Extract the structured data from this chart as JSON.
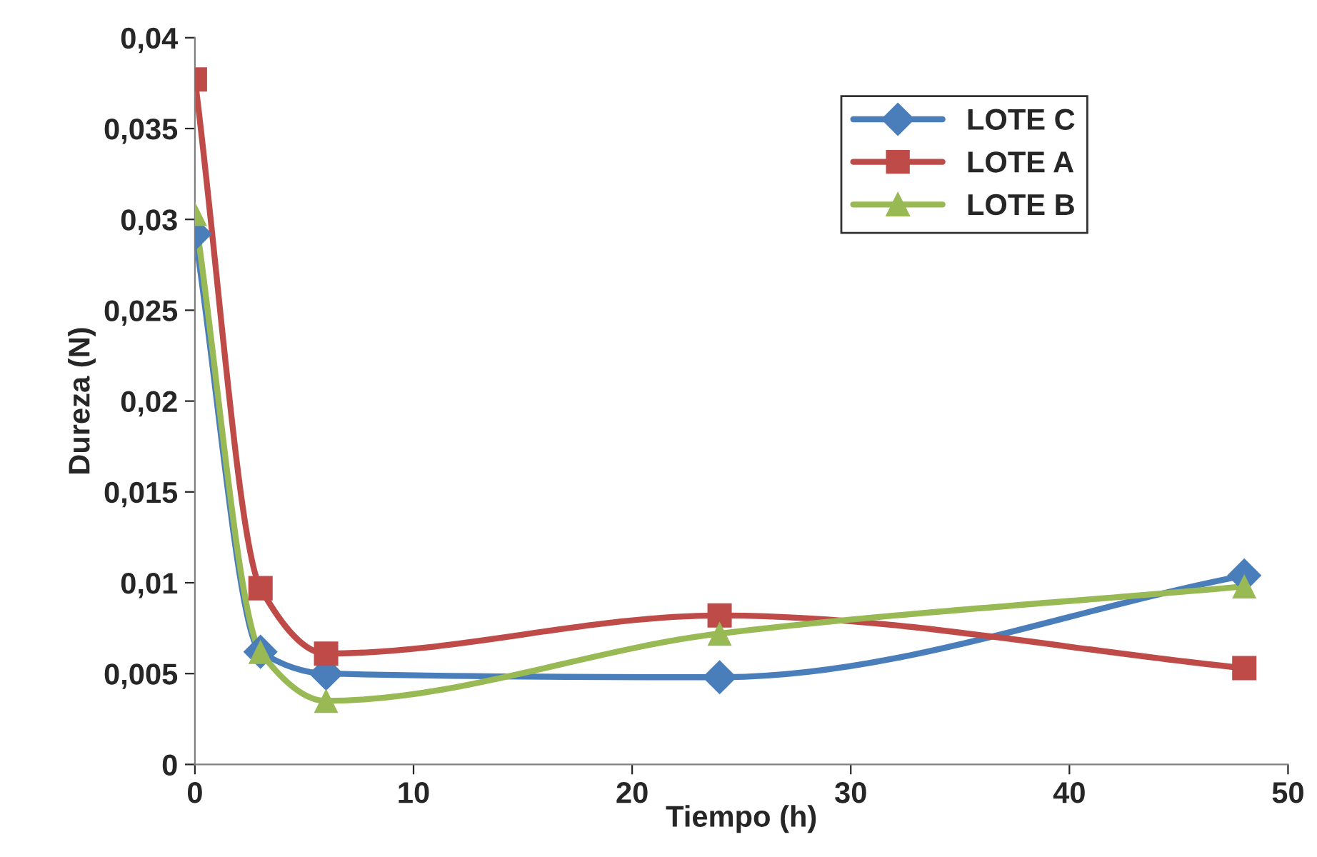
{
  "chart_data": {
    "type": "line",
    "xlabel": "Tiempo (h)",
    "ylabel": "Dureza (N)",
    "xlim": [
      0,
      50
    ],
    "xticks": [
      0,
      10,
      20,
      30,
      40,
      50
    ],
    "ylim": [
      0,
      0.04
    ],
    "yticks": [
      {
        "value": 0,
        "label": "0"
      },
      {
        "value": 0.005,
        "label": "0,005"
      },
      {
        "value": 0.01,
        "label": "0,01"
      },
      {
        "value": 0.015,
        "label": "0,015"
      },
      {
        "value": 0.02,
        "label": "0,02"
      },
      {
        "value": 0.025,
        "label": "0,025"
      },
      {
        "value": 0.03,
        "label": "0,03"
      },
      {
        "value": 0.035,
        "label": "0,035"
      },
      {
        "value": 0.04,
        "label": "0,04"
      }
    ],
    "x": [
      0,
      3,
      6,
      24,
      48
    ],
    "series": [
      {
        "name": "LOTE C",
        "color": "#4a7ebb",
        "marker": "diamond",
        "values": [
          0.0292,
          0.0062,
          0.005,
          0.0048,
          0.0104
        ]
      },
      {
        "name": "LOTE A",
        "color": "#be4b48",
        "marker": "square",
        "values": [
          0.0377,
          0.0097,
          0.0061,
          0.0082,
          0.0053
        ]
      },
      {
        "name": "LOTE B",
        "color": "#98b954",
        "marker": "triangle",
        "values": [
          0.0303,
          0.0062,
          0.0035,
          0.0072,
          0.0098
        ]
      }
    ],
    "grid": false,
    "legend": "top right"
  }
}
